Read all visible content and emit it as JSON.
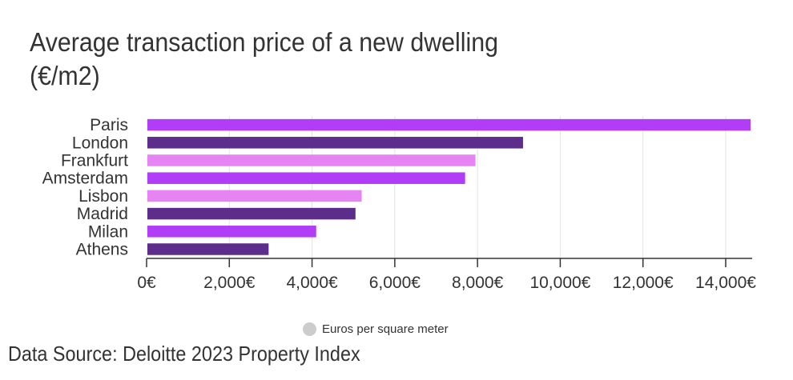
{
  "chart_data": {
    "type": "bar",
    "orientation": "horizontal",
    "title": "Average transaction price of a new dwelling (€/m2)",
    "title_lines": [
      "Average transaction price of a new dwelling",
      "(€/m2)"
    ],
    "categories": [
      "Paris",
      "London",
      "Frankfurt",
      "Amsterdam",
      "Lisbon",
      "Madrid",
      "Milan",
      "Athens"
    ],
    "values": [
      14600,
      9100,
      7950,
      7700,
      5200,
      5050,
      4100,
      2950
    ],
    "bar_colors": [
      "#b13df7",
      "#5c2d8a",
      "#e584f2",
      "#b13df7",
      "#e584f2",
      "#5c2d8a",
      "#b13df7",
      "#5c2d8a"
    ],
    "xlabel": "",
    "ylabel": "",
    "xlim": [
      0,
      14600
    ],
    "x_ticks": [
      0,
      2000,
      4000,
      6000,
      8000,
      10000,
      12000,
      14000
    ],
    "x_tick_labels": [
      "0€",
      "2,000€",
      "4,000€",
      "6,000€",
      "8,000€",
      "10,000€",
      "12,000€",
      "14,000€"
    ],
    "grid": true,
    "legend": {
      "entries": [
        "Euros per square meter"
      ],
      "placement": "bottom-center",
      "color": "#cccccc"
    },
    "source": "Data Source: Deloitte 2023 Property Index"
  }
}
